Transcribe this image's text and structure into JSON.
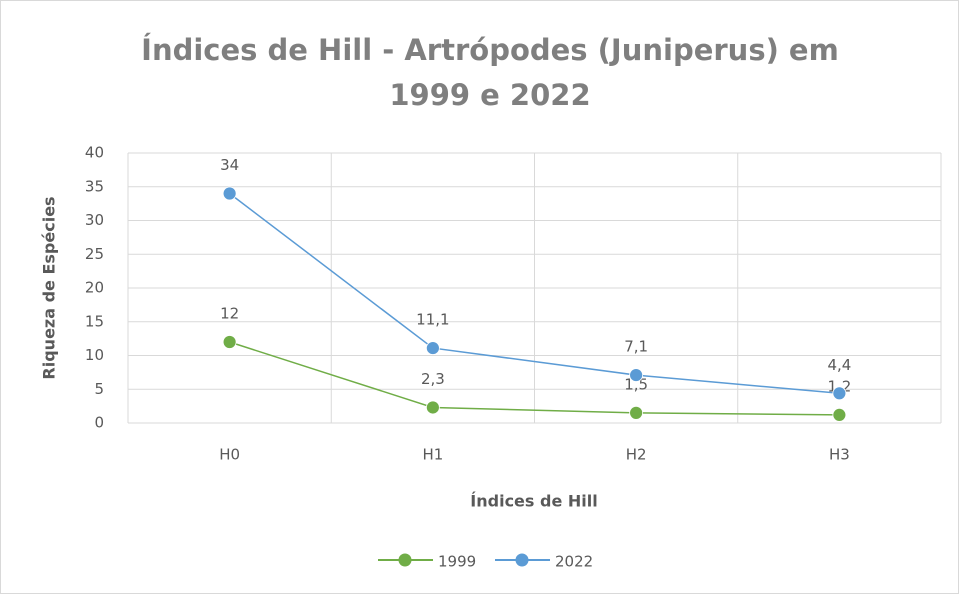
{
  "chart_data": {
    "type": "line",
    "title": "Índices de Hill - Artrópodes (Juniperus) em 1999 e 2022",
    "x_label": "Índices de Hill",
    "y_label": "Riqueza de Espécies",
    "categories": [
      "H0",
      "H1",
      "H2",
      "H3"
    ],
    "series": [
      {
        "name": "1999",
        "color": "#70ad47",
        "values": [
          12,
          2.3,
          1.5,
          1.2
        ],
        "value_labels": [
          "12",
          "2,3",
          "1,5",
          "1,2"
        ]
      },
      {
        "name": "2022",
        "color": "#5b9bd5",
        "values": [
          34,
          11.1,
          7.1,
          4.4
        ],
        "value_labels": [
          "34",
          "11,1",
          "7,1",
          "4,4"
        ]
      }
    ],
    "ylim": [
      0,
      40
    ],
    "yticks": [
      0,
      5,
      10,
      15,
      20,
      25,
      30,
      35,
      40
    ],
    "grid": true,
    "legend": "bottom"
  }
}
